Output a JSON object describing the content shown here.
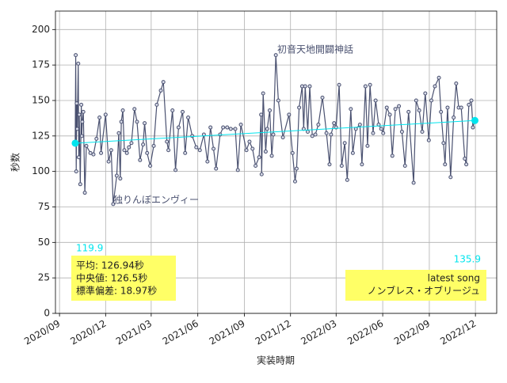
{
  "chart_data": {
    "type": "line",
    "xlabel": "実装時期",
    "ylabel": "秒数",
    "ylim": [
      0,
      213
    ],
    "yticks": [
      0,
      25,
      50,
      75,
      100,
      125,
      150,
      175,
      200
    ],
    "xlim": [
      "2020-08-24",
      "2023-01-12"
    ],
    "xticks": [
      {
        "value": "2020-09",
        "label": "2020/09"
      },
      {
        "value": "2020-12",
        "label": "2020/12"
      },
      {
        "value": "2021-03",
        "label": "2021/03"
      },
      {
        "value": "2021-06",
        "label": "2021/06"
      },
      {
        "value": "2021-09",
        "label": "2021/09"
      },
      {
        "value": "2021-12",
        "label": "2021/12"
      },
      {
        "value": "2022-03",
        "label": "2022/03"
      },
      {
        "value": "2022-06",
        "label": "2022/06"
      },
      {
        "value": "2022-09",
        "label": "2022/09"
      },
      {
        "value": "2022-12",
        "label": "2022/12"
      }
    ],
    "grid": true,
    "series": [
      {
        "color": "#4a5170",
        "x": [
          "2020-10-02",
          "2020-10-03",
          "2020-10-04",
          "2020-10-05",
          "2020-10-06",
          "2020-10-08",
          "2020-10-09",
          "2020-10-10",
          "2020-10-12",
          "2020-10-14",
          "2020-10-15",
          "2020-10-16",
          "2020-10-18",
          "2020-10-21",
          "2020-10-24",
          "2020-11-01",
          "2020-11-07",
          "2020-11-13",
          "2020-11-19",
          "2020-11-22",
          "2020-12-01",
          "2020-12-07",
          "2020-12-12",
          "2020-12-16",
          "2020-12-23",
          "2020-12-27",
          "2020-12-30",
          "2021-01-01",
          "2021-01-04",
          "2021-01-07",
          "2021-01-12",
          "2021-01-16",
          "2021-01-21",
          "2021-01-27",
          "2021-02-01",
          "2021-02-07",
          "2021-02-13",
          "2021-02-16",
          "2021-02-21",
          "2021-02-27",
          "2021-03-06",
          "2021-03-12",
          "2021-03-20",
          "2021-03-25",
          "2021-04-01",
          "2021-04-04",
          "2021-04-12",
          "2021-04-18",
          "2021-04-24",
          "2021-05-02",
          "2021-05-07",
          "2021-05-13",
          "2021-05-21",
          "2021-05-29",
          "2021-06-05",
          "2021-06-13",
          "2021-06-20",
          "2021-06-26",
          "2021-07-02",
          "2021-07-07",
          "2021-07-15",
          "2021-07-21",
          "2021-07-29",
          "2021-08-05",
          "2021-08-14",
          "2021-08-19",
          "2021-08-25",
          "2021-09-05",
          "2021-09-11",
          "2021-09-17",
          "2021-09-23",
          "2021-09-30",
          "2021-10-04",
          "2021-10-05",
          "2021-10-08",
          "2021-10-13",
          "2021-10-16",
          "2021-10-21",
          "2021-10-25",
          "2021-10-28",
          "2021-11-02",
          "2021-11-07",
          "2021-11-16",
          "2021-11-28",
          "2021-12-05",
          "2021-12-10",
          "2021-12-13",
          "2021-12-18",
          "2021-12-24",
          "2021-12-27",
          "2021-12-30",
          "2022-01-04",
          "2022-01-08",
          "2022-01-13",
          "2022-01-19",
          "2022-01-25",
          "2022-02-02",
          "2022-02-10",
          "2022-02-16",
          "2022-02-19",
          "2022-02-25",
          "2022-03-01",
          "2022-03-07",
          "2022-03-12",
          "2022-03-18",
          "2022-03-23",
          "2022-03-30",
          "2022-04-03",
          "2022-04-09",
          "2022-04-17",
          "2022-04-21",
          "2022-04-28",
          "2022-05-02",
          "2022-05-07",
          "2022-05-13",
          "2022-05-18",
          "2022-05-24",
          "2022-05-29",
          "2022-06-02",
          "2022-06-09",
          "2022-06-15",
          "2022-06-20",
          "2022-06-26",
          "2022-07-03",
          "2022-07-09",
          "2022-07-15",
          "2022-07-22",
          "2022-08-01",
          "2022-08-06",
          "2022-08-12",
          "2022-08-18",
          "2022-08-24",
          "2022-08-31",
          "2022-09-05",
          "2022-09-12",
          "2022-09-20",
          "2022-09-24",
          "2022-09-29",
          "2022-10-02",
          "2022-10-07",
          "2022-10-13",
          "2022-10-19",
          "2022-10-24",
          "2022-10-29",
          "2022-11-03",
          "2022-11-10",
          "2022-11-13",
          "2022-11-18",
          "2022-11-23",
          "2022-11-26",
          "2022-11-30"
        ],
        "values": [
          120,
          182,
          100,
          148,
          130,
          176,
          110,
          140,
          91,
          147,
          125,
          135,
          142,
          85,
          118,
          113,
          112,
          123,
          138,
          113,
          140,
          107,
          115,
          77,
          97,
          127,
          95,
          135,
          143,
          115,
          113,
          117,
          120,
          144,
          135,
          108,
          119,
          134,
          113,
          104,
          118,
          147,
          157,
          163,
          121,
          115,
          143,
          101,
          131,
          142,
          113,
          138,
          125,
          117,
          115,
          126,
          107,
          131,
          116,
          102,
          126,
          131,
          131,
          130,
          130,
          101,
          133,
          115,
          121,
          116,
          104,
          110,
          140,
          98,
          155,
          114,
          130,
          143,
          111,
          126,
          182,
          150,
          124,
          140,
          113,
          93,
          102,
          145,
          160,
          130,
          160,
          128,
          160,
          125,
          126,
          133,
          152,
          127,
          105,
          126,
          134,
          131,
          161,
          104,
          120,
          94,
          144,
          113,
          130,
          133,
          105,
          160,
          118,
          161,
          127,
          150,
          133,
          130,
          127,
          145,
          140,
          111,
          144,
          146,
          128,
          104,
          142,
          92,
          150,
          143,
          128,
          155,
          122,
          150,
          160,
          166,
          142,
          120,
          105,
          145,
          96,
          138,
          162,
          145,
          145,
          109,
          105,
          147,
          150,
          131,
          136
        ]
      },
      {
        "color": "#00e5ee",
        "x": [
          "2020-10-02",
          "2022-11-30"
        ],
        "values": [
          119.9,
          135.9
        ]
      }
    ],
    "annotations": [
      "初音天地開闢神話",
      "独りんぼエンヴィー"
    ],
    "stats": [
      "平均: 126.94秒",
      "中央値: 126.5秒",
      "標準偏差:  18.97秒"
    ],
    "latest": [
      "latest song",
      "ノンブレス・オブリージュ"
    ]
  }
}
